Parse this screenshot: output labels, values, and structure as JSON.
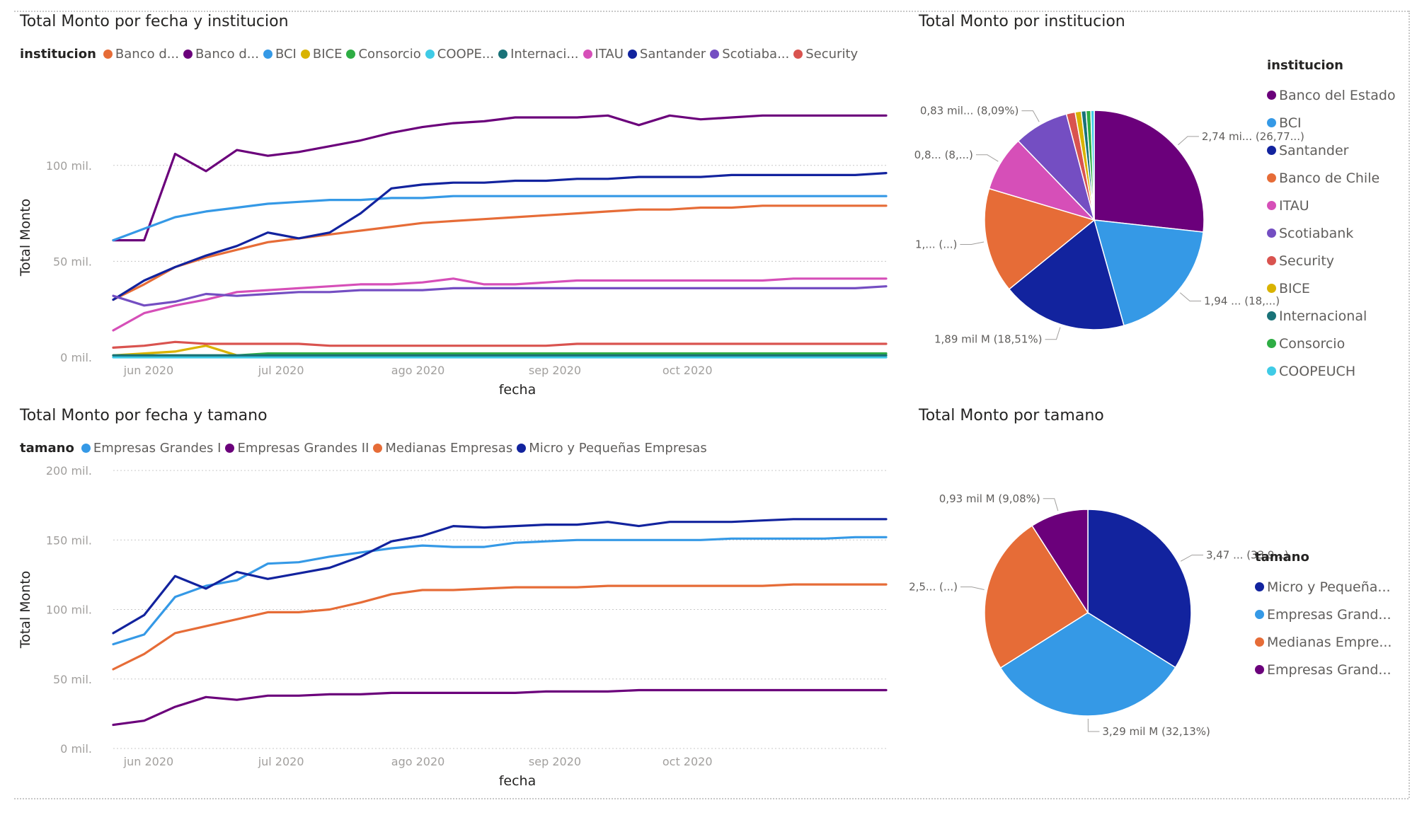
{
  "chart_data": [
    {
      "type": "line",
      "title": "Total Monto por fecha y institucion",
      "legend_title": "institucion",
      "legend_labels": [
        "Banco d...",
        "Banco d...",
        "BCI",
        "BICE",
        "Consorcio",
        "COOPE...",
        "Internaci...",
        "ITAU",
        "Santander",
        "Scotiaba...",
        "Security"
      ],
      "xlabel": "fecha",
      "ylabel": "Total Monto",
      "x_tick_labels": [
        "jun 2020",
        "jul 2020",
        "ago 2020",
        "sep 2020",
        "oct 2020"
      ],
      "x_tick_dates": [
        "2020-06-01",
        "2020-07-01",
        "2020-08-01",
        "2020-09-01",
        "2020-10-01"
      ],
      "y_tick_labels": [
        "0 mil.",
        "50 mil.",
        "100 mil."
      ],
      "y_tick_values": [
        0,
        50,
        100
      ],
      "ylim": [
        0,
        125
      ],
      "y_unit": "mil.",
      "grid": true,
      "legend_position": "top",
      "x": [
        "2020-05-24",
        "2020-05-31",
        "2020-06-07",
        "2020-06-14",
        "2020-06-21",
        "2020-06-28",
        "2020-07-05",
        "2020-07-12",
        "2020-07-19",
        "2020-07-26",
        "2020-08-02",
        "2020-08-09",
        "2020-08-16",
        "2020-08-23",
        "2020-08-30",
        "2020-09-06",
        "2020-09-13",
        "2020-09-20",
        "2020-09-27",
        "2020-10-04",
        "2020-10-11",
        "2020-10-18",
        "2020-10-25",
        "2020-11-01",
        "2020-11-08",
        "2020-11-15"
      ],
      "series": [
        {
          "name": "Banco de Chile",
          "color": "#E66C37",
          "values": [
            30,
            38,
            47,
            52,
            56,
            60,
            62,
            64,
            66,
            68,
            70,
            71,
            72,
            73,
            74,
            75,
            76,
            77,
            77,
            78,
            78,
            79,
            79,
            79,
            79,
            79
          ]
        },
        {
          "name": "Banco del Estado",
          "color": "#6B007B",
          "values": [
            61,
            61,
            106,
            97,
            108,
            105,
            107,
            110,
            113,
            117,
            120,
            122,
            123,
            125,
            125,
            125,
            126,
            121,
            126,
            124,
            125,
            126,
            126,
            126,
            126,
            126
          ]
        },
        {
          "name": "BCI",
          "color": "#3599E6",
          "values": [
            61,
            67,
            73,
            76,
            78,
            80,
            81,
            82,
            82,
            83,
            83,
            84,
            84,
            84,
            84,
            84,
            84,
            84,
            84,
            84,
            84,
            84,
            84,
            84,
            84,
            84
          ]
        },
        {
          "name": "BICE",
          "color": "#D9B300",
          "values": [
            1,
            2,
            3,
            6,
            1,
            1,
            1,
            1,
            1,
            1,
            1,
            1,
            1,
            1,
            1,
            1,
            1,
            1,
            1,
            1,
            1,
            1,
            1,
            1,
            1,
            1
          ]
        },
        {
          "name": "Consorcio",
          "color": "#2EAD44",
          "values": [
            1,
            1,
            1,
            1,
            1,
            2,
            2,
            2,
            2,
            2,
            2,
            2,
            2,
            2,
            2,
            2,
            2,
            2,
            2,
            2,
            2,
            2,
            2,
            2,
            2,
            2
          ]
        },
        {
          "name": "COOPEUCH",
          "color": "#3FCBE6",
          "values": [
            0,
            0,
            0,
            0,
            0,
            0,
            0,
            0,
            0,
            0,
            0,
            0,
            0,
            0,
            0,
            0,
            0,
            0,
            0,
            0,
            0,
            0,
            0,
            0,
            0,
            0
          ]
        },
        {
          "name": "Internacional",
          "color": "#197278",
          "values": [
            1,
            1,
            1,
            1,
            1,
            1,
            1,
            1,
            1,
            1,
            1,
            1,
            1,
            1,
            1,
            1,
            1,
            1,
            1,
            1,
            1,
            1,
            1,
            1,
            1,
            1
          ]
        },
        {
          "name": "ITAU",
          "color": "#D64FB8",
          "values": [
            14,
            23,
            27,
            30,
            34,
            35,
            36,
            37,
            38,
            38,
            39,
            41,
            38,
            38,
            39,
            40,
            40,
            40,
            40,
            40,
            40,
            40,
            41,
            41,
            41,
            41
          ]
        },
        {
          "name": "Santander",
          "color": "#12239E",
          "values": [
            30,
            40,
            47,
            53,
            58,
            65,
            62,
            65,
            75,
            88,
            90,
            91,
            91,
            92,
            92,
            93,
            93,
            94,
            94,
            94,
            95,
            95,
            95,
            95,
            95,
            96
          ]
        },
        {
          "name": "Scotiabank",
          "color": "#744EC2",
          "values": [
            32,
            27,
            29,
            33,
            32,
            33,
            34,
            34,
            35,
            35,
            35,
            36,
            36,
            36,
            36,
            36,
            36,
            36,
            36,
            36,
            36,
            36,
            36,
            36,
            36,
            37
          ]
        },
        {
          "name": "Security",
          "color": "#D9534F",
          "values": [
            5,
            6,
            8,
            7,
            7,
            7,
            7,
            6,
            6,
            6,
            6,
            6,
            6,
            6,
            6,
            7,
            7,
            7,
            7,
            7,
            7,
            7,
            7,
            7,
            7,
            7
          ]
        }
      ]
    },
    {
      "type": "pie",
      "title": "Total Monto por institucion",
      "legend_title": "institucion",
      "slices": [
        {
          "name": "Banco del Estado",
          "value": 26.77,
          "color": "#6B007B",
          "label": "2,74 mi... (26,77...)"
        },
        {
          "name": "BCI",
          "value": 18.9,
          "color": "#3599E6",
          "label": "1,94 ... (18,...)"
        },
        {
          "name": "Santander",
          "value": 18.51,
          "color": "#12239E",
          "label": "1,89 mil M (18,51%)"
        },
        {
          "name": "Banco de Chile",
          "value": 15.5,
          "color": "#E66C37",
          "label": "1,... (...)"
        },
        {
          "name": "ITAU",
          "value": 8.2,
          "color": "#D64FB8",
          "label": "0,8... (8,...)"
        },
        {
          "name": "Scotiabank",
          "value": 8.09,
          "color": "#744EC2",
          "label": "0,83 mil... (8,09%)"
        },
        {
          "name": "Security",
          "value": 1.3,
          "color": "#D9534F",
          "label": ""
        },
        {
          "name": "BICE",
          "value": 0.9,
          "color": "#D9B300",
          "label": ""
        },
        {
          "name": "Internacional",
          "value": 0.7,
          "color": "#197278",
          "label": ""
        },
        {
          "name": "Consorcio",
          "value": 0.7,
          "color": "#2EAD44",
          "label": ""
        },
        {
          "name": "COOPEUCH",
          "value": 0.5,
          "color": "#3FCBE6",
          "label": ""
        }
      ]
    },
    {
      "type": "line",
      "title": "Total Monto por fecha y tamano",
      "legend_title": "tamano",
      "legend_labels": [
        "Empresas Grandes I",
        "Empresas Grandes II",
        "Medianas Empresas",
        "Micro y Pequeñas Empresas"
      ],
      "xlabel": "fecha",
      "ylabel": "Total Monto",
      "x_tick_labels": [
        "jun 2020",
        "jul 2020",
        "ago 2020",
        "sep 2020",
        "oct 2020"
      ],
      "x_tick_dates": [
        "2020-06-01",
        "2020-07-01",
        "2020-08-01",
        "2020-09-01",
        "2020-10-01"
      ],
      "y_tick_labels": [
        "0 mil.",
        "50 mil.",
        "100 mil.",
        "150 mil.",
        "200 mil."
      ],
      "y_tick_values": [
        0,
        50,
        100,
        150,
        200
      ],
      "ylim": [
        0,
        200
      ],
      "y_unit": "mil.",
      "grid": true,
      "legend_position": "top",
      "x": [
        "2020-05-24",
        "2020-05-31",
        "2020-06-07",
        "2020-06-14",
        "2020-06-21",
        "2020-06-28",
        "2020-07-05",
        "2020-07-12",
        "2020-07-19",
        "2020-07-26",
        "2020-08-02",
        "2020-08-09",
        "2020-08-16",
        "2020-08-23",
        "2020-08-30",
        "2020-09-06",
        "2020-09-13",
        "2020-09-20",
        "2020-09-27",
        "2020-10-04",
        "2020-10-11",
        "2020-10-18",
        "2020-10-25",
        "2020-11-01",
        "2020-11-08",
        "2020-11-15"
      ],
      "series": [
        {
          "name": "Empresas Grandes I",
          "color": "#3599E6",
          "values": [
            75,
            82,
            109,
            117,
            121,
            133,
            134,
            138,
            141,
            144,
            146,
            145,
            145,
            148,
            149,
            150,
            150,
            150,
            150,
            150,
            151,
            151,
            151,
            151,
            152,
            152
          ]
        },
        {
          "name": "Empresas Grandes II",
          "color": "#6B007B",
          "values": [
            17,
            20,
            30,
            37,
            35,
            38,
            38,
            39,
            39,
            40,
            40,
            40,
            40,
            40,
            41,
            41,
            41,
            42,
            42,
            42,
            42,
            42,
            42,
            42,
            42,
            42
          ]
        },
        {
          "name": "Medianas Empresas",
          "color": "#E66C37",
          "values": [
            57,
            68,
            83,
            88,
            93,
            98,
            98,
            100,
            105,
            111,
            114,
            114,
            115,
            116,
            116,
            116,
            117,
            117,
            117,
            117,
            117,
            117,
            118,
            118,
            118,
            118
          ]
        },
        {
          "name": "Micro y Pequeñas Empresas",
          "color": "#12239E",
          "values": [
            83,
            96,
            124,
            115,
            127,
            122,
            126,
            130,
            138,
            149,
            153,
            160,
            159,
            160,
            161,
            161,
            163,
            160,
            163,
            163,
            163,
            164,
            165,
            165,
            165,
            165
          ]
        }
      ]
    },
    {
      "type": "pie",
      "title": "Total Monto por tamano",
      "legend_title": "tamano",
      "legend_labels": [
        "Micro y Pequeña...",
        "Empresas Grand...",
        "Medianas Empre...",
        "Empresas Grand..."
      ],
      "slices": [
        {
          "name": "Micro y Pequeñas Empresas",
          "value": 33.9,
          "color": "#12239E",
          "label": "3,47 ... (33,9...)"
        },
        {
          "name": "Empresas Grandes I",
          "value": 32.13,
          "color": "#3599E6",
          "label": "3,29 mil M (32,13%)"
        },
        {
          "name": "Medianas Empresas",
          "value": 24.89,
          "color": "#E66C37",
          "label": "2,5... (...)"
        },
        {
          "name": "Empresas Grandes II",
          "value": 9.08,
          "color": "#6B007B",
          "label": "0,93 mil M (9,08%)"
        }
      ]
    }
  ]
}
